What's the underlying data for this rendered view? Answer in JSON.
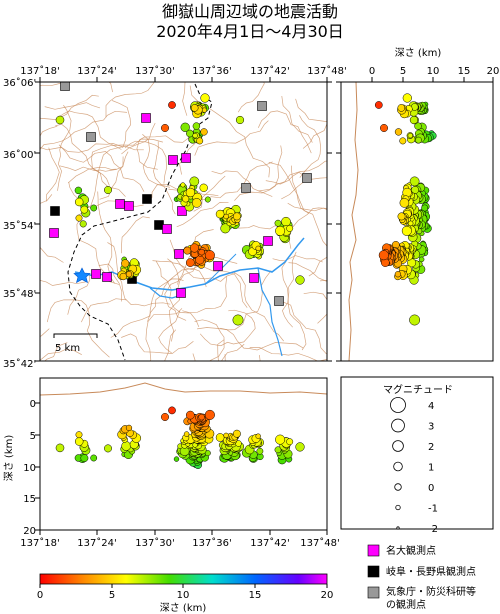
{
  "title": {
    "line1": "御嶽山周辺域の地震活動",
    "line2": "2020年4月1日～4月30日"
  },
  "map": {
    "lon_ticks": [
      "137˚18'",
      "137˚24'",
      "137˚30'",
      "137˚36'",
      "137˚42'",
      "137˚48'"
    ],
    "lat_ticks": [
      "36˚06'",
      "36˚00'",
      "35˚54'",
      "35˚48'",
      "35˚42'"
    ],
    "scale_label": "5 km"
  },
  "depth_section_right": {
    "title": "深さ (km)",
    "ticks": [
      "0",
      "5",
      "10",
      "15",
      "20"
    ]
  },
  "depth_section_bottom": {
    "ylabel": "深さ (km)",
    "ticks": [
      "0",
      "5",
      "10",
      "15",
      "20"
    ],
    "lon_ticks": [
      "137˚18'",
      "137˚24'",
      "137˚30'",
      "137˚36'",
      "137˚42'",
      "137˚48'"
    ]
  },
  "magnitude_legend": {
    "title": "マグニチュード",
    "levels": [
      {
        "label": "4",
        "m": 4
      },
      {
        "label": "3",
        "m": 3
      },
      {
        "label": "2",
        "m": 2
      },
      {
        "label": "1",
        "m": 1
      },
      {
        "label": "0",
        "m": 0
      },
      {
        "label": "-1",
        "m": -1
      },
      {
        "label": "-2",
        "m": -2
      }
    ]
  },
  "station_legend": [
    {
      "label": "名大観測点",
      "color": "#ff00ff"
    },
    {
      "label": "岐阜・長野県観測点",
      "color": "#000000"
    },
    {
      "label": "気象庁・防災科研等",
      "label2": "の観測点",
      "color": "#999999"
    }
  ],
  "colorbar": {
    "label": "深さ (km)",
    "ticks": [
      "0",
      "5",
      "10",
      "15",
      "20"
    ],
    "range": [
      0,
      20
    ]
  },
  "colors": {
    "topo": "#c88a5a",
    "river": "#3399ee",
    "border": "#000000"
  }
}
